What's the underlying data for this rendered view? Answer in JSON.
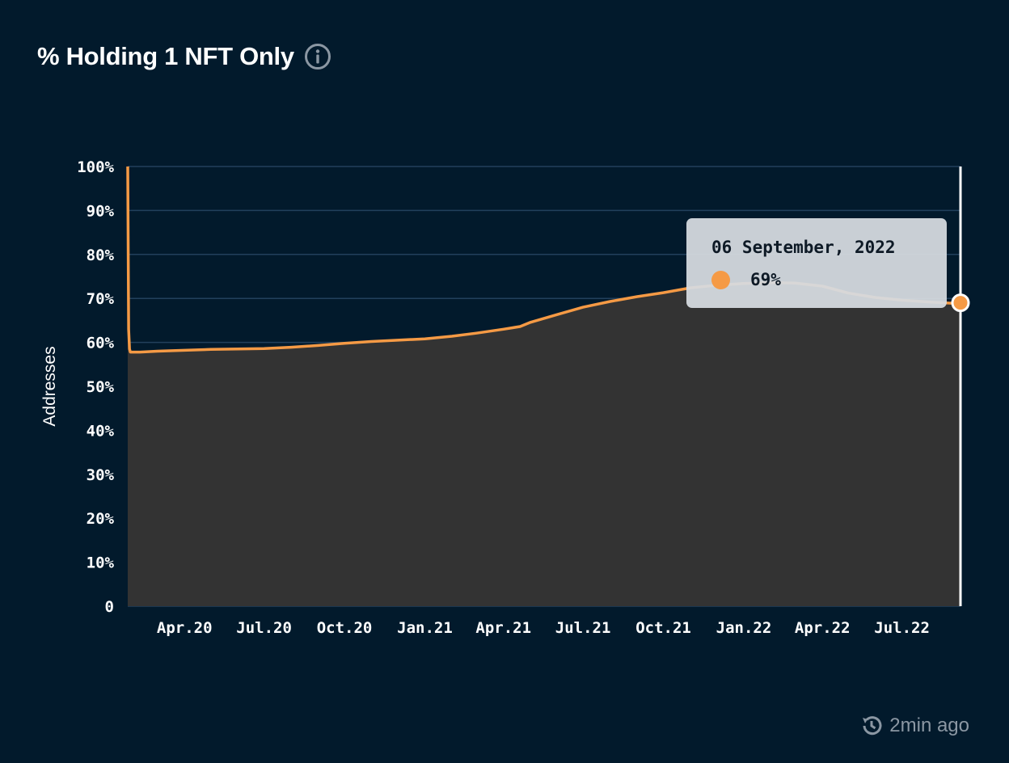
{
  "header": {
    "title": "% Holding 1 NFT Only",
    "info_icon": "info-icon"
  },
  "footer": {
    "updated_icon": "history-icon",
    "updated_text": "2min ago"
  },
  "tooltip": {
    "date": "06 September, 2022",
    "value": "69%"
  },
  "colors": {
    "background": "#021a2c",
    "line": "#f59a45",
    "area": "#333333",
    "grid": "#22405c",
    "tooltip_bg": "#d6dbe0"
  },
  "chart_data": {
    "type": "area",
    "title": "% Holding 1 NFT Only",
    "xlabel": "",
    "ylabel": "Addresses",
    "ylim": [
      0,
      100
    ],
    "xlim": [
      "2020-01-27",
      "2022-09-06"
    ],
    "y_ticks": [
      "0",
      "10%",
      "20%",
      "30%",
      "40%",
      "50%",
      "60%",
      "70%",
      "80%",
      "90%",
      "100%"
    ],
    "x_ticks": [
      {
        "label": "Apr.20",
        "date": "2020-04-01"
      },
      {
        "label": "Jul.20",
        "date": "2020-07-01"
      },
      {
        "label": "Oct.20",
        "date": "2020-10-01"
      },
      {
        "label": "Jan.21",
        "date": "2021-01-01"
      },
      {
        "label": "Apr.21",
        "date": "2021-04-01"
      },
      {
        "label": "Jul.21",
        "date": "2021-07-01"
      },
      {
        "label": "Oct.21",
        "date": "2021-10-01"
      },
      {
        "label": "Jan.22",
        "date": "2022-01-01"
      },
      {
        "label": "Apr.22",
        "date": "2022-04-01"
      },
      {
        "label": "Jul.22",
        "date": "2022-07-01"
      }
    ],
    "grid": true,
    "series": [
      {
        "values": [
          [
            "2020-01-27",
            100
          ],
          [
            "2020-01-28",
            63
          ],
          [
            "2020-01-29",
            58.5
          ],
          [
            "2020-01-30",
            57.8
          ],
          [
            "2020-02-10",
            57.8
          ],
          [
            "2020-03-01",
            58.0
          ],
          [
            "2020-04-01",
            58.2
          ],
          [
            "2020-05-01",
            58.4
          ],
          [
            "2020-06-01",
            58.5
          ],
          [
            "2020-07-01",
            58.6
          ],
          [
            "2020-08-01",
            58.9
          ],
          [
            "2020-09-01",
            59.3
          ],
          [
            "2020-10-01",
            59.8
          ],
          [
            "2020-11-01",
            60.2
          ],
          [
            "2020-12-01",
            60.5
          ],
          [
            "2021-01-01",
            60.8
          ],
          [
            "2021-02-01",
            61.4
          ],
          [
            "2021-03-01",
            62.1
          ],
          [
            "2021-04-01",
            63.0
          ],
          [
            "2021-04-20",
            63.6
          ],
          [
            "2021-05-01",
            64.5
          ],
          [
            "2021-06-01",
            66.3
          ],
          [
            "2021-07-01",
            68.0
          ],
          [
            "2021-08-01",
            69.3
          ],
          [
            "2021-09-01",
            70.4
          ],
          [
            "2021-10-01",
            71.3
          ],
          [
            "2021-11-01",
            72.4
          ],
          [
            "2021-12-01",
            73.0
          ],
          [
            "2022-01-01",
            73.4
          ],
          [
            "2022-02-01",
            73.6
          ],
          [
            "2022-03-01",
            73.5
          ],
          [
            "2022-04-01",
            72.8
          ],
          [
            "2022-05-01",
            71.2
          ],
          [
            "2022-06-01",
            70.2
          ],
          [
            "2022-07-01",
            69.6
          ],
          [
            "2022-08-01",
            69.2
          ],
          [
            "2022-09-06",
            68.8
          ]
        ]
      }
    ],
    "highlight": {
      "date": "2022-09-06",
      "value": 69
    }
  }
}
